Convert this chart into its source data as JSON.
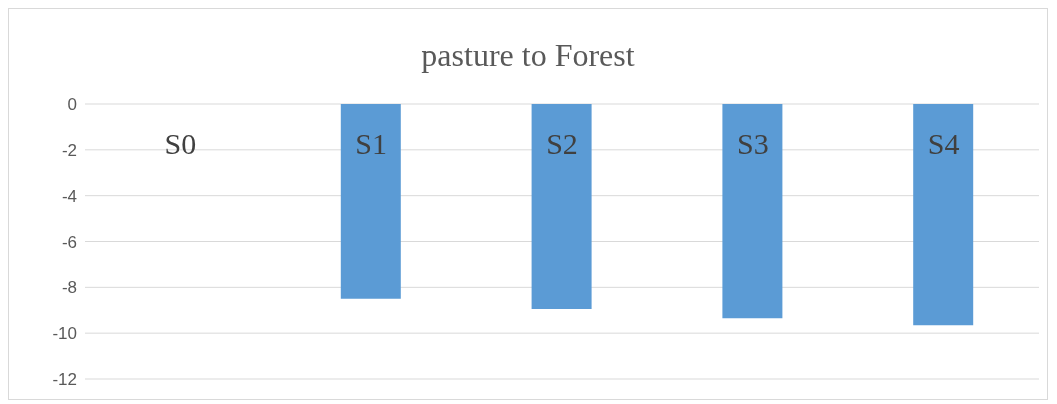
{
  "chart_data": {
    "type": "bar",
    "title": "pasture to Forest",
    "categories": [
      "S0",
      "S1",
      "S2",
      "S3",
      "S4"
    ],
    "values": [
      0,
      -8.5,
      -8.95,
      -9.35,
      -9.65
    ],
    "color": "#5b9bd5",
    "ylim": [
      -12,
      0
    ],
    "yticks": [
      -12,
      -10,
      -8,
      -6,
      -4,
      -2,
      0
    ],
    "grid": "y"
  }
}
